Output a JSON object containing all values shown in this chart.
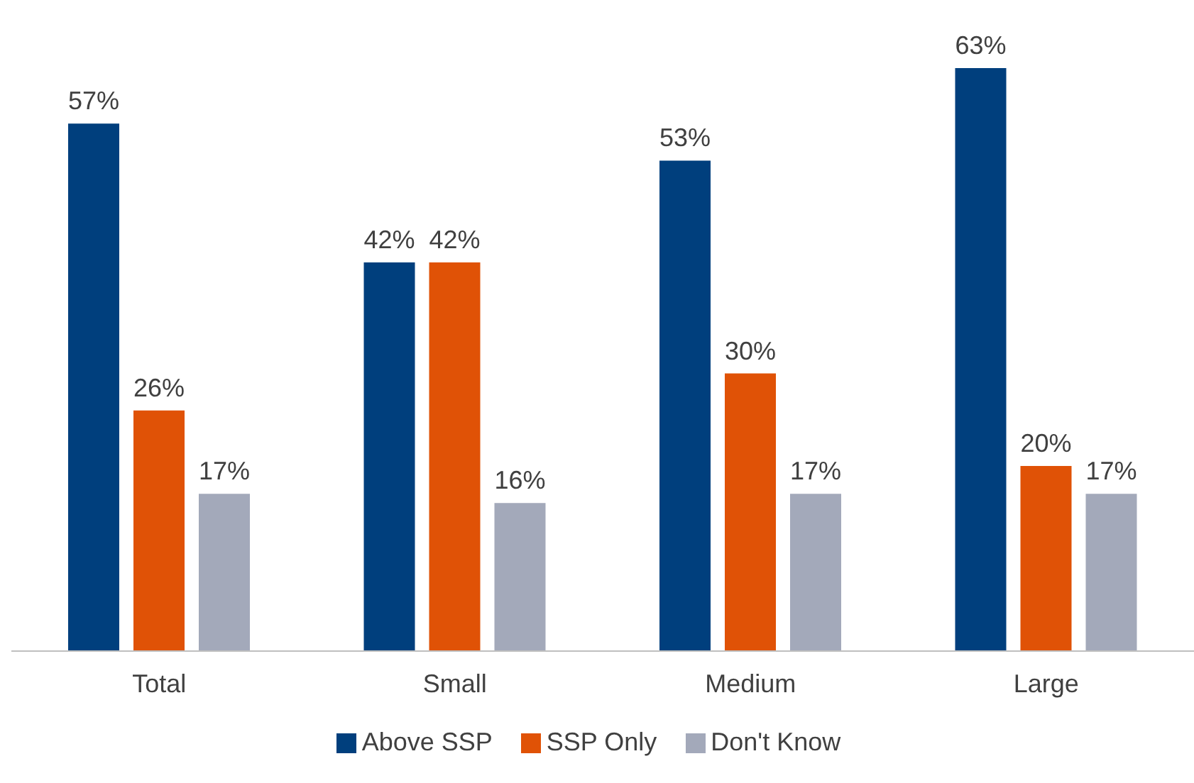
{
  "chart_data": {
    "type": "bar",
    "categories": [
      "Total",
      "Small",
      "Medium",
      "Large"
    ],
    "series": [
      {
        "name": "Above SSP",
        "color": "#003f7d",
        "values": [
          57,
          42,
          53,
          63
        ],
        "value_labels": [
          "57%",
          "42%",
          "53%",
          "63%"
        ]
      },
      {
        "name": "SSP Only",
        "color": "#e05206",
        "values": [
          26,
          42,
          30,
          20
        ],
        "value_labels": [
          "26%",
          "42%",
          "30%",
          "20%"
        ]
      },
      {
        "name": "Don't Know",
        "color": "#a3a9ba",
        "values": [
          17,
          16,
          17,
          17
        ],
        "value_labels": [
          "17%",
          "16%",
          "17%",
          "17%"
        ]
      }
    ],
    "legend": "bottom",
    "grid": false
  }
}
